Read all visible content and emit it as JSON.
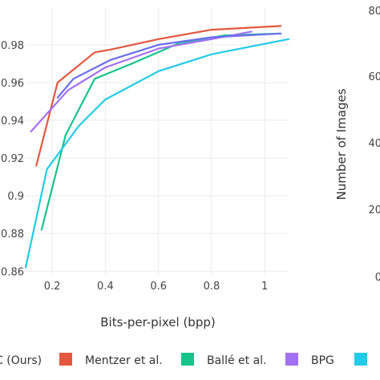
{
  "chart_data": [
    {
      "type": "line",
      "xlabel": "Bits-per-pixel (bpp)",
      "ylabel": "",
      "xlim": [
        0.1,
        1.09
      ],
      "ylim": [
        0.858,
        0.9995
      ],
      "xticks": [
        0.2,
        0.4,
        0.6,
        0.8,
        1
      ],
      "xtick_labels": [
        "0.2",
        "0.4",
        "0.6",
        "0.8",
        "1"
      ],
      "yticks": [
        0.86,
        0.88,
        0.9,
        0.92,
        0.94,
        0.96,
        0.98
      ],
      "ytick_labels": [
        "0.86",
        "0.88",
        "0.9",
        "0.92",
        "0.94",
        "0.96",
        "0.98"
      ],
      "grid": true,
      "series": [
        {
          "name": "Mentzer et al.",
          "color": "#e4573e",
          "x": [
            0.14,
            0.22,
            0.36,
            0.42,
            0.6,
            0.8,
            1.06
          ],
          "y": [
            0.916,
            0.96,
            0.976,
            0.9775,
            0.983,
            0.988,
            0.99
          ]
        },
        {
          "name": "Ballé et al.",
          "color": "#16c48a",
          "x": [
            0.16,
            0.25,
            0.36,
            0.5,
            0.68,
            0.85,
            1.06
          ],
          "y": [
            0.882,
            0.932,
            0.962,
            0.97,
            0.981,
            0.985,
            0.986
          ]
        },
        {
          "name": "BPG",
          "color": "#a370f4",
          "x": [
            0.12,
            0.26,
            0.4,
            0.6,
            0.8,
            0.95
          ],
          "y": [
            0.934,
            0.956,
            0.968,
            0.978,
            0.983,
            0.987
          ]
        },
        {
          "name": "",
          "color": "#22cbe8",
          "x": [
            0.1,
            0.18,
            0.3,
            0.4,
            0.6,
            0.8,
            1.09
          ],
          "y": [
            0.862,
            0.914,
            0.937,
            0.951,
            0.966,
            0.975,
            0.983
          ]
        },
        {
          "name": "",
          "color": "#6a6ef0",
          "x": [
            0.22,
            0.28,
            0.42,
            0.6,
            0.8,
            1.06
          ],
          "y": [
            0.952,
            0.962,
            0.972,
            0.98,
            0.984,
            0.986
          ]
        }
      ]
    },
    {
      "type": "bar",
      "ylabel": "Number of Images",
      "ytick_labels": [
        "80",
        "60",
        "40",
        "20",
        "0"
      ],
      "values": []
    }
  ],
  "legend": {
    "placement": "bottom",
    "items": [
      {
        "label": "C (Ours)",
        "color": "#6a6ef0"
      },
      {
        "label": "Mentzer et al.",
        "color": "#e4573e"
      },
      {
        "label": "Ballé et al.",
        "color": "#16c48a"
      },
      {
        "label": "BPG",
        "color": "#a370f4"
      },
      {
        "label": "",
        "color": "#22cbe8"
      }
    ]
  }
}
